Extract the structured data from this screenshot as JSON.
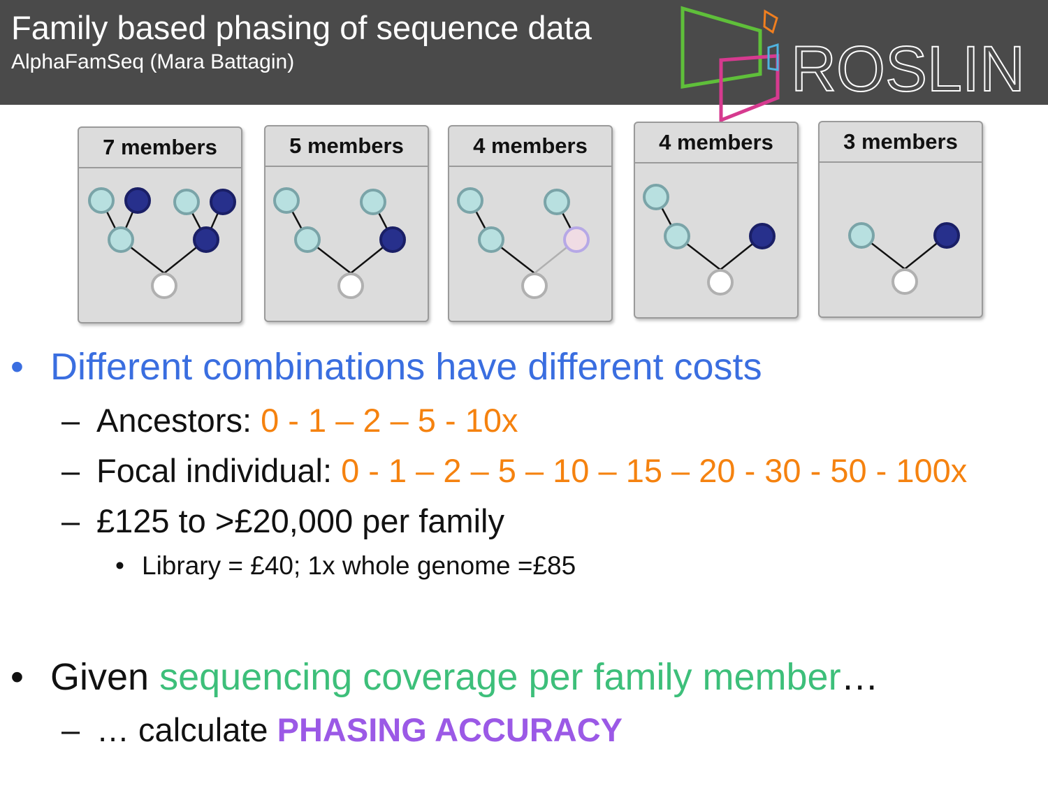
{
  "header": {
    "title": "Family based phasing of sequence data",
    "subtitle": "AlphaFamSeq (Mara Battagin)",
    "logo_text": "ROSLIN"
  },
  "panels": [
    {
      "label": "7 members"
    },
    {
      "label": "5 members"
    },
    {
      "label": "4 members"
    },
    {
      "label": "4 members"
    },
    {
      "label": "3 members"
    }
  ],
  "bullets": {
    "b1": {
      "marker": "•",
      "text": "Different combinations have different costs"
    },
    "ancestors": {
      "dash": "–",
      "label": "Ancestors: ",
      "values": "0 - 1 – 2 – 5 - 10x"
    },
    "focal": {
      "dash": "–",
      "label": "Focal individual: ",
      "values": "0 - 1 – 2 – 5 – 10 – 15 – 20 - 30 - 50 - 100x"
    },
    "cost": {
      "dash": "–",
      "text": "£125 to >£20,000 per family"
    },
    "library": {
      "marker": "•",
      "text": "Library = £40; 1x whole genome =£85"
    },
    "b2": {
      "marker": "•",
      "given": "Given ",
      "highlight": "sequencing coverage per family member",
      "ellipsis": "…"
    },
    "calc": {
      "dash": "–",
      "text": "… calculate ",
      "highlight": "PHASING ACCURACY"
    }
  },
  "colors": {
    "header_bg": "#4a4a4a",
    "blue_text": "#3a6ee0",
    "orange": "#f5820f",
    "green": "#3dbf7a",
    "purple": "#9b59e6",
    "node_light": "#b8e0e0",
    "node_dark": "#27308c",
    "node_pink": "#f0dce4",
    "logo_green": "#5fbf3a",
    "logo_magenta": "#d63a8f",
    "logo_orange": "#f07f1f",
    "logo_cyan": "#4fb3e0"
  }
}
